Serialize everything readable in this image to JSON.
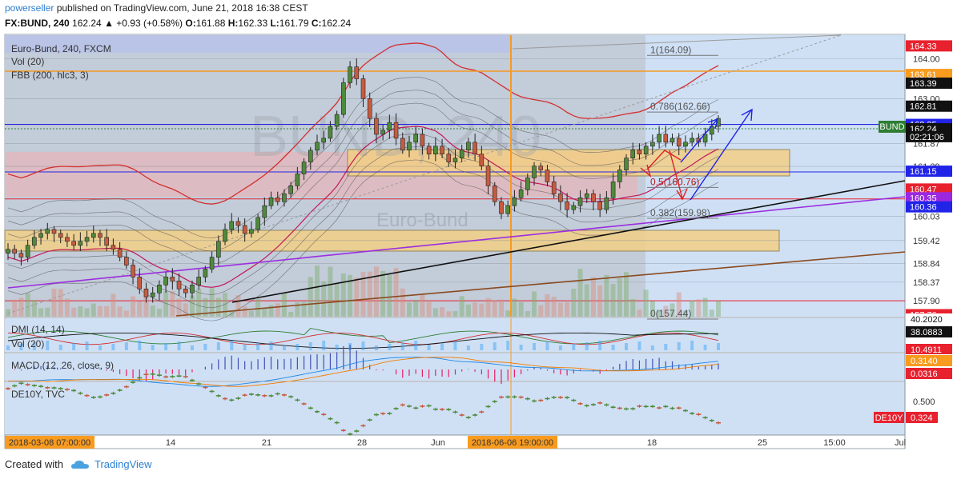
{
  "header": {
    "publisher": "powerseller",
    "publish_text": "published on TradingView.com, June 21, 2018 16:38 CEST",
    "symbol": "FX:BUND, 240",
    "change": "162.24 ▲ +0.93 (+0.58%)",
    "o_label": "O:",
    "o_value": "161.88",
    "h_label": "H:",
    "h_value": "162.33",
    "l_label": "L:",
    "l_value": "161.79",
    "c_label": "C:",
    "c_value": "162.24"
  },
  "footer": {
    "created_with": "Created with",
    "brand": "TradingView"
  },
  "chart_data": {
    "type": "candlestick",
    "title": "Euro-Bund, 240, FXCM",
    "watermark": "BUND, 240",
    "watermark_sub": "Euro-Bund",
    "indicators": [
      "Vol (20)",
      "FBB (200, hlc3, 3)"
    ],
    "price_axis": [
      "164.00",
      "163.00",
      "162.34",
      "161.87",
      "161.29",
      "160.03",
      "159.42",
      "158.84",
      "158.37",
      "157.90"
    ],
    "price_range": [
      157.5,
      164.6
    ],
    "price_tags": [
      {
        "value": "164.33",
        "price": 164.33,
        "color": "#e8212e"
      },
      {
        "value": "163.61",
        "price": 163.61,
        "color": "#f89b1f"
      },
      {
        "value": "163.39",
        "price": 163.39,
        "color": "#111111"
      },
      {
        "value": "162.81",
        "price": 162.81,
        "color": "#111111"
      },
      {
        "value": "162.35",
        "price": 162.35,
        "color": "#2124e6"
      },
      {
        "value": "162.24",
        "price": 162.24,
        "color": "#111111"
      },
      {
        "value": "02:21:06",
        "price": 162.04,
        "color": "#111111"
      },
      {
        "value": "161.15",
        "price": 161.17,
        "color": "#2124e6"
      },
      {
        "value": "160.47",
        "price": 160.72,
        "color": "#e8212e"
      },
      {
        "value": "160.35",
        "price": 160.5,
        "color": "#9c27e0"
      },
      {
        "value": "160.36",
        "price": 160.27,
        "color": "#2124e6"
      },
      {
        "value": "157.76",
        "price": 157.55,
        "color": "#e8212e"
      }
    ],
    "bund_label": "BUND",
    "fib_levels": [
      {
        "label": "1(164.09)",
        "price": 164.09
      },
      {
        "label": "0.786(162.66)",
        "price": 162.66
      },
      {
        "label": "0.5(160.76)",
        "price": 160.76
      },
      {
        "label": "0.382(159.98)",
        "price": 159.98
      },
      {
        "label": "0(157.44)",
        "price": 157.44
      }
    ],
    "x_axis": [
      "2018-03-08 07:00:00",
      "14",
      "21",
      "28",
      "Jun",
      "2018-06-06 19:00:00",
      "18",
      "25",
      "15:00",
      "Jul"
    ],
    "closes": [
      159.2,
      159.1,
      159.0,
      159.3,
      159.5,
      159.6,
      159.7,
      159.6,
      159.5,
      159.4,
      159.3,
      159.4,
      159.5,
      159.6,
      159.5,
      159.3,
      159.2,
      159.0,
      158.8,
      158.5,
      158.2,
      158.0,
      158.1,
      158.3,
      158.5,
      158.4,
      158.2,
      158.1,
      158.3,
      158.5,
      158.7,
      159.0,
      159.4,
      159.7,
      159.9,
      159.8,
      159.6,
      159.7,
      160.0,
      160.3,
      160.5,
      160.4,
      160.6,
      160.8,
      161.1,
      161.4,
      161.7,
      161.9,
      162.0,
      162.3,
      162.6,
      163.4,
      163.8,
      163.5,
      163.0,
      162.5,
      162.1,
      162.2,
      162.4,
      162.0,
      161.7,
      161.9,
      162.1,
      161.8,
      161.6,
      161.8,
      161.6,
      161.4,
      161.5,
      161.7,
      161.9,
      161.6,
      161.3,
      160.8,
      160.4,
      160.1,
      160.3,
      160.5,
      160.7,
      161.0,
      161.3,
      161.2,
      160.9,
      160.6,
      160.4,
      160.2,
      160.3,
      160.5,
      160.6,
      160.4,
      160.2,
      160.5,
      160.9,
      161.2,
      161.5,
      161.7,
      161.6,
      161.8,
      161.9,
      162.1,
      161.9,
      162.0,
      161.8,
      161.9,
      162.0,
      161.9,
      162.1,
      162.3,
      162.5
    ],
    "panes": [
      {
        "label": "DMI (14, 14)",
        "sub": "Vol (20)",
        "values": [
          "40.2020",
          "38.0883",
          "10.4911"
        ]
      },
      {
        "label": "MACD (12, 26, close, 9)",
        "values": [
          "0.3140",
          "0.0316"
        ]
      },
      {
        "label": "DE10Y, TVC",
        "axis": "0.500",
        "tag_label": "DE10Y",
        "tag_value": "0.324"
      }
    ]
  }
}
